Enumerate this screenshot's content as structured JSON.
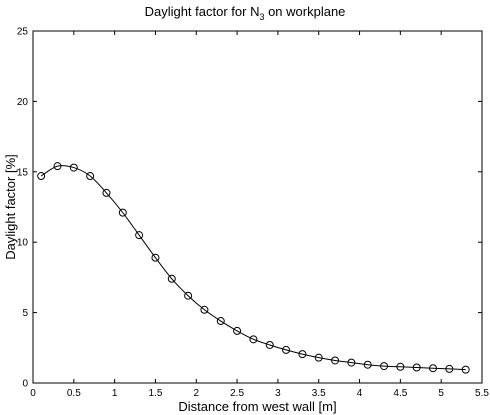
{
  "chart_data": {
    "type": "line",
    "title": {
      "prefix": "Daylight factor for N",
      "subscript": "3",
      "suffix": " on workplane"
    },
    "xlabel": "Distance from west wall [m]",
    "ylabel": "Daylight factor [%]",
    "xlim": [
      0,
      5.5
    ],
    "ylim": [
      0,
      25
    ],
    "xticks": [
      0,
      0.5,
      1,
      1.5,
      2,
      2.5,
      3,
      3.5,
      4,
      4.5,
      5,
      5.5
    ],
    "xtick_labels": [
      "0",
      "0.5",
      "1",
      "1.5",
      "2",
      "2.5",
      "3",
      "3.5",
      "4",
      "4.5",
      "5",
      "5.5"
    ],
    "yticks": [
      0,
      5,
      10,
      15,
      20,
      25
    ],
    "ytick_labels": [
      "0",
      "5",
      "10",
      "15",
      "20",
      "25"
    ],
    "grid": false,
    "legend": "none",
    "line_color": "#000000",
    "marker": "circle-open",
    "series": [
      {
        "x": [
          0.1,
          0.3,
          0.5,
          0.7,
          0.9,
          1.1,
          1.3,
          1.5,
          1.7,
          1.9,
          2.1,
          2.3,
          2.5,
          2.7,
          2.9,
          3.1,
          3.3,
          3.5,
          3.7,
          3.9,
          4.1,
          4.3,
          4.5,
          4.7,
          4.9,
          5.1,
          5.3
        ],
        "y": [
          14.7,
          15.4,
          15.3,
          14.7,
          13.5,
          12.1,
          10.5,
          8.9,
          7.4,
          6.2,
          5.2,
          4.4,
          3.7,
          3.1,
          2.7,
          2.35,
          2.05,
          1.8,
          1.6,
          1.45,
          1.3,
          1.2,
          1.15,
          1.1,
          1.05,
          1.0,
          0.95
        ]
      }
    ]
  }
}
